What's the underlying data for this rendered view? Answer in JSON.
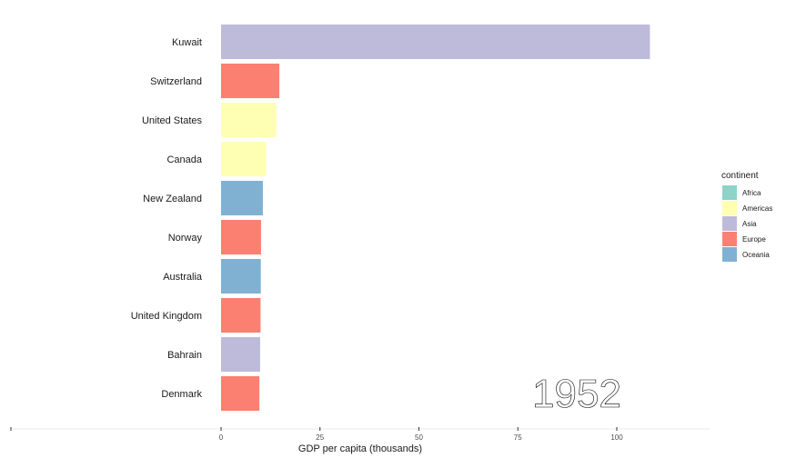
{
  "chart_data": {
    "type": "bar",
    "orientation": "horizontal",
    "categories": [
      "Kuwait",
      "Switzerland",
      "United States",
      "Canada",
      "New Zealand",
      "Norway",
      "Australia",
      "United Kingdom",
      "Bahrain",
      "Denmark"
    ],
    "values": [
      108.38,
      14.73,
      13.99,
      11.37,
      10.56,
      10.1,
      10.04,
      9.98,
      9.87,
      9.69
    ],
    "continent": [
      "Asia",
      "Europe",
      "Americas",
      "Americas",
      "Oceania",
      "Europe",
      "Oceania",
      "Europe",
      "Asia",
      "Europe"
    ],
    "xlabel": "GDP per capita (thousands)",
    "ylabel": "",
    "xlim": [
      0,
      125
    ],
    "x_ticks": [
      0,
      25,
      50,
      75,
      100
    ],
    "x_tick_labels": [
      "0",
      "25",
      "50",
      "75",
      "100"
    ],
    "year": "1952",
    "grid": false,
    "legend": {
      "title": "continent",
      "position": "right",
      "entries": [
        {
          "name": "Africa",
          "color": "#8dd3c7"
        },
        {
          "name": "Americas",
          "color": "#ffffb3"
        },
        {
          "name": "Asia",
          "color": "#bebada"
        },
        {
          "name": "Europe",
          "color": "#fb8072"
        },
        {
          "name": "Oceania",
          "color": "#80b1d3"
        }
      ]
    }
  }
}
